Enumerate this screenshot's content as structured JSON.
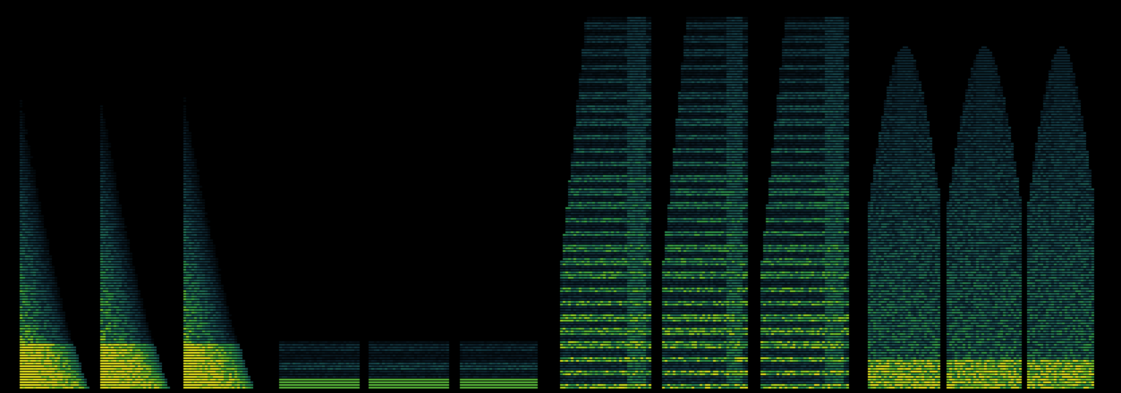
{
  "colormap": [
    "#000000",
    "#0b1f2a",
    "#15414a",
    "#1f6b5a",
    "#2f9a4a",
    "#7fcf2a",
    "#e6e620"
  ],
  "background": "#000000",
  "segments": [
    {
      "group": "A",
      "kind": "decay",
      "energy": 0.95,
      "topFrac": 0.8
    },
    {
      "group": "A",
      "kind": "decay",
      "energy": 0.95,
      "topFrac": 0.8
    },
    {
      "group": "A",
      "kind": "decay",
      "energy": 0.95,
      "topFrac": 0.8
    },
    {
      "group": "B",
      "kind": "low",
      "energy": 0.55,
      "topFrac": 0.13
    },
    {
      "group": "B",
      "kind": "low",
      "energy": 0.55,
      "topFrac": 0.13
    },
    {
      "group": "B",
      "kind": "low",
      "energy": 0.55,
      "topFrac": 0.13
    },
    {
      "group": "C",
      "kind": "harmonic",
      "energy": 1.0,
      "topFrac": 0.98
    },
    {
      "group": "C",
      "kind": "harmonic",
      "energy": 1.0,
      "topFrac": 0.98
    },
    {
      "group": "C",
      "kind": "harmonic",
      "energy": 1.0,
      "topFrac": 0.98
    },
    {
      "group": "D",
      "kind": "noise",
      "energy": 0.85,
      "topFrac": 0.9
    },
    {
      "group": "D",
      "kind": "noise",
      "energy": 0.85,
      "topFrac": 0.9
    },
    {
      "group": "D",
      "kind": "noise",
      "energy": 0.85,
      "topFrac": 0.9
    }
  ]
}
